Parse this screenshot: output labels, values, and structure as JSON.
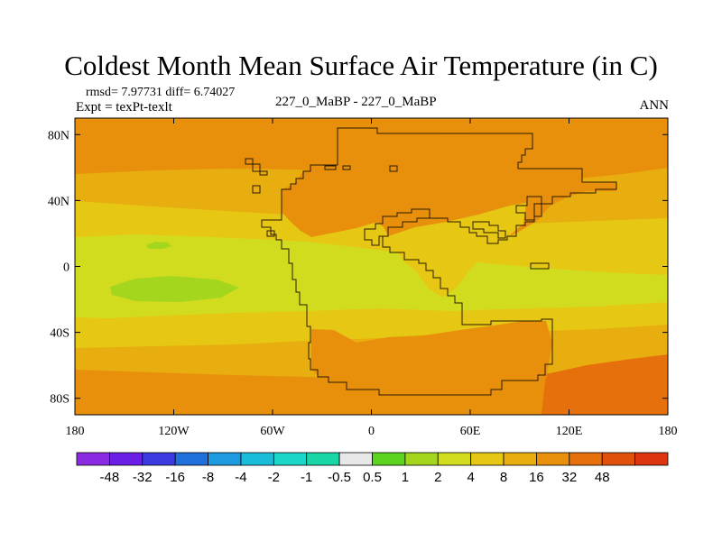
{
  "chart_data": {
    "type": "heatmap",
    "title": "Coldest Month Mean Surface Air Temperature (in C)",
    "stats": "rmsd= 7.97731 diff= 6.74027",
    "subtitle_left": "Expt = texPt-texlt",
    "subtitle_center": "227_0_MaBP - 227_0_MaBP",
    "subtitle_right": "ANN",
    "x_ticks": [
      {
        "value": -180,
        "label": "180"
      },
      {
        "value": -120,
        "label": "120W"
      },
      {
        "value": -60,
        "label": "60W"
      },
      {
        "value": 0,
        "label": "0"
      },
      {
        "value": 60,
        "label": "60E"
      },
      {
        "value": 120,
        "label": "120E"
      },
      {
        "value": 180,
        "label": "180"
      }
    ],
    "y_ticks": [
      {
        "value": 80,
        "label": "80N"
      },
      {
        "value": 40,
        "label": "40N"
      },
      {
        "value": 0,
        "label": "0"
      },
      {
        "value": -40,
        "label": "40S"
      },
      {
        "value": -80,
        "label": "80S"
      }
    ],
    "xlim": [
      -180,
      180
    ],
    "ylim": [
      -90,
      90
    ],
    "colorbar": {
      "colors": [
        "#8a2be2",
        "#6a1ee6",
        "#3b3be0",
        "#1f6fdd",
        "#1e9be0",
        "#19bcd9",
        "#1ad6c8",
        "#19d6a6",
        "#e8e8e8",
        "#5cd41f",
        "#a4d61e",
        "#d2dc1f",
        "#e6c814",
        "#e8ad0f",
        "#e8900c",
        "#e6700c",
        "#e0520c",
        "#dc3510"
      ],
      "labels": [
        "-48",
        "-32",
        "-16",
        "-8",
        "-4",
        "-2",
        "-1",
        "-0.5",
        "0.5",
        "1",
        "2",
        "4",
        "8",
        "16",
        "32",
        "48"
      ]
    },
    "regions": [
      {
        "name": "north-polar-band",
        "color": "#e8900c"
      },
      {
        "name": "south-polar-band",
        "color": "#e8900c"
      },
      {
        "name": "southeast-hot-spot",
        "color": "#e6700c"
      },
      {
        "name": "north-mid-band",
        "color": "#e8ad0f"
      },
      {
        "name": "tropical-band",
        "color": "#e6c814"
      },
      {
        "name": "equatorial-band",
        "color": "#d2dc1f"
      },
      {
        "name": "green-patch-1",
        "color": "#a4d61e"
      },
      {
        "name": "green-patch-2",
        "color": "#a4d61e"
      },
      {
        "name": "continent-interior",
        "color": "#e8900c"
      },
      {
        "name": "south-lobe",
        "color": "#e8900c"
      },
      {
        "name": "inner-tongue",
        "color": "#e6c814"
      }
    ]
  }
}
